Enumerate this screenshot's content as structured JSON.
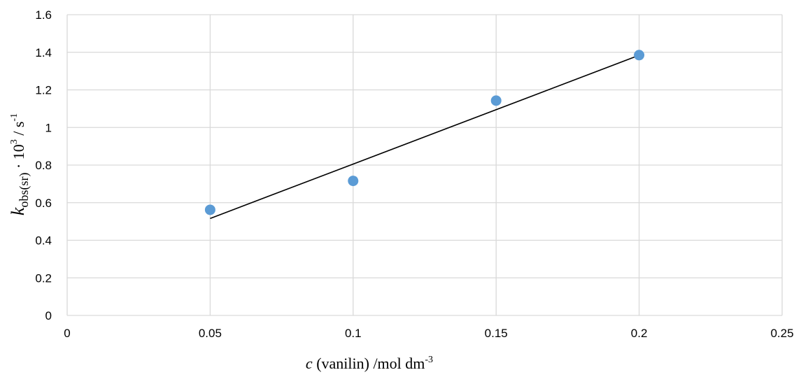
{
  "chart_data": {
    "type": "scatter",
    "xlim": [
      0,
      0.25
    ],
    "ylim": [
      0,
      1.6
    ],
    "x_ticks": [
      0,
      0.05,
      0.1,
      0.15,
      0.2,
      0.25
    ],
    "y_ticks": [
      0,
      0.2,
      0.4,
      0.6,
      0.8,
      1,
      1.2,
      1.4,
      1.6
    ],
    "x_tick_labels": [
      "0",
      "0.05",
      "0.1",
      "0.15",
      "0.2",
      "0.25"
    ],
    "y_tick_labels": [
      "0",
      "0.2",
      "0.4",
      "0.6",
      "0.8",
      "1",
      "1.2",
      "1.4",
      "1.6"
    ],
    "grid": true,
    "legend": "none",
    "xlabel": {
      "var": "c",
      "text": " (vanilin) /mol dm",
      "sup": "-3"
    },
    "ylabel": {
      "var": "k",
      "sub": "obs(sr)",
      "text": " · 10",
      "sup1": "3",
      "text2": " / s",
      "sup2": "-1"
    },
    "series": [
      {
        "x": [
          0.05,
          0.1,
          0.15,
          0.2
        ],
        "y": [
          0.562,
          0.716,
          1.143,
          1.385
        ],
        "color": "#5b9bd5"
      }
    ],
    "trendline": {
      "type": "linear",
      "x": [
        0.05,
        0.2
      ],
      "y": [
        0.516,
        1.384
      ],
      "color": "#000000"
    }
  }
}
